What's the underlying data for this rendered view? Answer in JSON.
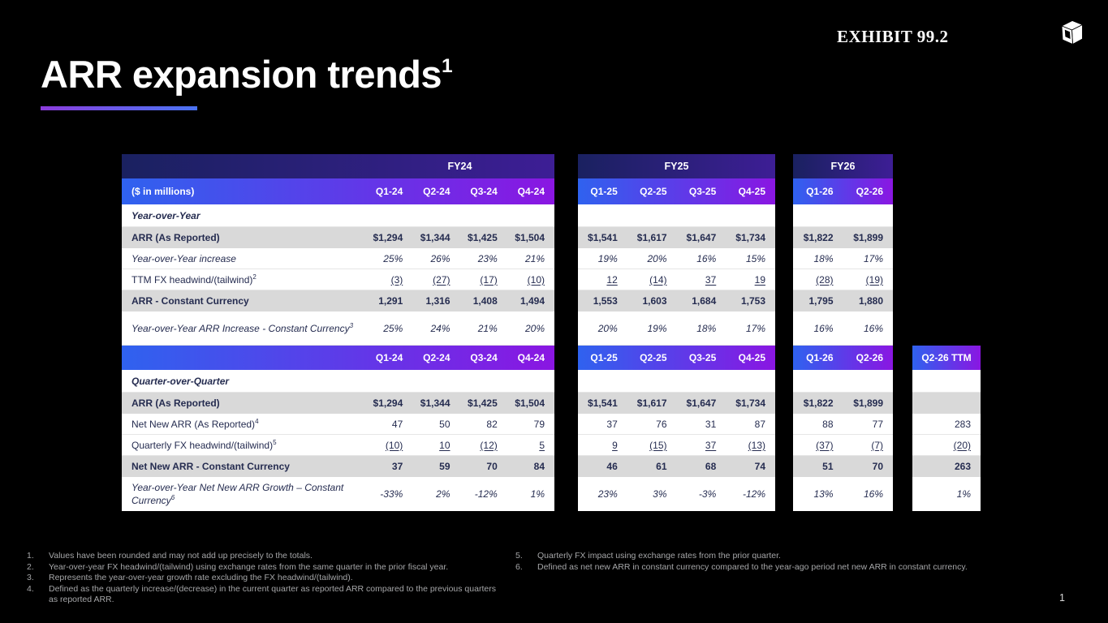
{
  "header": {
    "exhibit_label": "EXHIBIT 99.2",
    "logo_icon": "cube-logo"
  },
  "title": {
    "text": "ARR expansion trends",
    "sup": "1"
  },
  "table": {
    "units_label": "($ in millions)",
    "groups": [
      {
        "year": "FY24",
        "quarters": [
          "Q1-24",
          "Q2-24",
          "Q3-24",
          "Q4-24"
        ]
      },
      {
        "year": "FY25",
        "quarters": [
          "Q1-25",
          "Q2-25",
          "Q3-25",
          "Q4-25"
        ]
      },
      {
        "year": "FY26",
        "quarters": [
          "Q1-26",
          "Q2-26"
        ]
      }
    ],
    "ttm_header": "Q2-26 TTM",
    "rows": [
      {
        "id": "yoy-section",
        "type": "section",
        "style": "section",
        "label": "Year-over-Year",
        "sup": null,
        "fy24": [
          "",
          "",
          "",
          ""
        ],
        "fy25": [
          "",
          "",
          "",
          ""
        ],
        "fy26": [
          "",
          ""
        ],
        "ttm": null
      },
      {
        "id": "arr-reported-yoy",
        "type": "data",
        "style": "shaded-bold",
        "label": "ARR (As Reported)",
        "sup": null,
        "fy24": [
          "$1,294",
          "$1,344",
          "$1,425",
          "$1,504"
        ],
        "fy25": [
          "$1,541",
          "$1,617",
          "$1,647",
          "$1,734"
        ],
        "fy26": [
          "$1,822",
          "$1,899"
        ],
        "ttm": null
      },
      {
        "id": "yoy-increase",
        "type": "data",
        "style": "italic",
        "label": "Year-over-Year increase",
        "sup": null,
        "fy24": [
          "25%",
          "26%",
          "23%",
          "21%"
        ],
        "fy25": [
          "19%",
          "20%",
          "16%",
          "15%"
        ],
        "fy26": [
          "18%",
          "17%"
        ],
        "ttm": null
      },
      {
        "id": "ttm-fx-headwind",
        "type": "data",
        "style": "underline",
        "label": "TTM FX headwind/(tailwind)",
        "sup": "2",
        "fy24": [
          "(3)",
          "(27)",
          "(17)",
          "(10)"
        ],
        "fy25": [
          "12",
          "(14)",
          "37",
          "19"
        ],
        "fy26": [
          "(28)",
          "(19)"
        ],
        "ttm": null
      },
      {
        "id": "arr-constant-currency",
        "type": "data",
        "style": "shaded-bold",
        "label": "ARR - Constant Currency",
        "sup": null,
        "fy24": [
          "1,291",
          "1,316",
          "1,408",
          "1,494"
        ],
        "fy25": [
          "1,553",
          "1,603",
          "1,684",
          "1,753"
        ],
        "fy26": [
          "1,795",
          "1,880"
        ],
        "ttm": null
      },
      {
        "id": "yoy-arr-increase-cc",
        "type": "data",
        "style": "italic-tall",
        "label": "Year-over-Year ARR Increase - Constant Currency",
        "sup": "3",
        "fy24": [
          "25%",
          "24%",
          "21%",
          "20%"
        ],
        "fy25": [
          "20%",
          "19%",
          "18%",
          "17%"
        ],
        "fy26": [
          "16%",
          "16%"
        ],
        "ttm": null
      },
      {
        "id": "qoq-section",
        "type": "section",
        "style": "section",
        "label": "Quarter-over-Quarter",
        "sup": null,
        "fy24": [
          "",
          "",
          "",
          ""
        ],
        "fy25": [
          "",
          "",
          "",
          ""
        ],
        "fy26": [
          "",
          ""
        ],
        "ttm": ""
      },
      {
        "id": "arr-reported-qoq",
        "type": "data",
        "style": "shaded-bold",
        "label": "ARR (As Reported)",
        "sup": null,
        "fy24": [
          "$1,294",
          "$1,344",
          "$1,425",
          "$1,504"
        ],
        "fy25": [
          "$1,541",
          "$1,617",
          "$1,647",
          "$1,734"
        ],
        "fy26": [
          "$1,822",
          "$1,899"
        ],
        "ttm": ""
      },
      {
        "id": "net-new-arr",
        "type": "data",
        "style": "plain",
        "label": "Net New ARR (As Reported)",
        "sup": "4",
        "fy24": [
          "47",
          "50",
          "82",
          "79"
        ],
        "fy25": [
          "37",
          "76",
          "31",
          "87"
        ],
        "fy26": [
          "88",
          "77"
        ],
        "ttm": "283"
      },
      {
        "id": "quarterly-fx-headwind",
        "type": "data",
        "style": "underline",
        "label": "Quarterly FX headwind/(tailwind)",
        "sup": "5",
        "fy24": [
          "(10)",
          "10",
          "(12)",
          "5"
        ],
        "fy25": [
          "9",
          "(15)",
          "37",
          "(13)"
        ],
        "fy26": [
          "(37)",
          "(7)"
        ],
        "ttm": "(20)"
      },
      {
        "id": "net-new-arr-cc",
        "type": "data",
        "style": "shaded-bold",
        "label": "Net New ARR - Constant Currency",
        "sup": null,
        "fy24": [
          "37",
          "59",
          "70",
          "84"
        ],
        "fy25": [
          "46",
          "61",
          "68",
          "74"
        ],
        "fy26": [
          "51",
          "70"
        ],
        "ttm": "263"
      },
      {
        "id": "yoy-net-new-arr-growth-cc",
        "type": "data",
        "style": "italic-tall",
        "label": "Year-over-Year Net New ARR Growth – Constant Currency",
        "sup": "6",
        "fy24": [
          "-33%",
          "2%",
          "-12%",
          "1%"
        ],
        "fy25": [
          "23%",
          "3%",
          "-3%",
          "-12%"
        ],
        "fy26": [
          "13%",
          "16%"
        ],
        "ttm": "1%"
      }
    ]
  },
  "footnotes": {
    "left": [
      {
        "num": "1.",
        "text": "Values have been rounded and may not add up precisely to the totals."
      },
      {
        "num": "2.",
        "text": "Year-over-year FX headwind/(tailwind) using exchange rates from the same quarter in the prior fiscal year."
      },
      {
        "num": "3.",
        "text": "Represents the year-over-year growth rate excluding the FX headwind/(tailwind)."
      },
      {
        "num": "4.",
        "text": "Defined as the quarterly increase/(decrease) in the current quarter as reported ARR compared to the previous quarters as reported ARR."
      }
    ],
    "right": [
      {
        "num": "5.",
        "text": "Quarterly FX impact using exchange rates from the prior quarter."
      },
      {
        "num": "6.",
        "text": "Defined as net new ARR in constant currency compared to the year-ago period net new ARR in constant currency."
      }
    ]
  },
  "page_number": "1",
  "colors": {
    "background": "#000000",
    "year_band_gradient": [
      "#1A2160",
      "#3D1E95"
    ],
    "quarter_band_gradient": [
      "#2F62EF",
      "#8A16E2"
    ],
    "title_underline_gradient": [
      "#8C3CDC",
      "#4A73F2"
    ],
    "shaded_row": "#D9D9D9",
    "table_text": "#252C50",
    "footnote_text": "#A5A6A8"
  }
}
